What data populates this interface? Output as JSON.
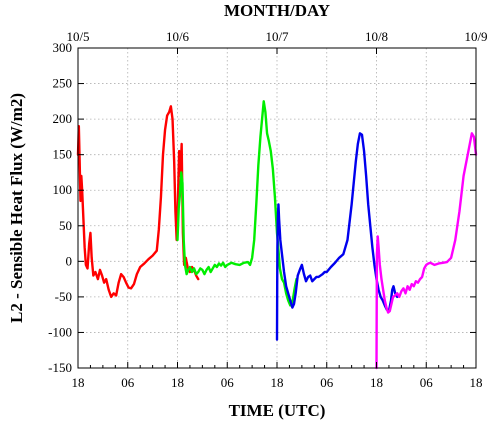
{
  "chart_data": {
    "type": "line",
    "title": "",
    "xlabel": "TIME (UTC)",
    "ylabel": "L2 - Sensible Heat Flux (W/m2)",
    "top_axis_label": "MONTH/DAY",
    "xlim": [
      0,
      96
    ],
    "ylim": [
      -150,
      300
    ],
    "grid": true,
    "legend": "none",
    "bottom_ticks": [
      {
        "x": 0,
        "label": "18"
      },
      {
        "x": 12,
        "label": "06"
      },
      {
        "x": 24,
        "label": "18"
      },
      {
        "x": 36,
        "label": "06"
      },
      {
        "x": 48,
        "label": "18"
      },
      {
        "x": 60,
        "label": "06"
      },
      {
        "x": 72,
        "label": "18"
      },
      {
        "x": 84,
        "label": "06"
      },
      {
        "x": 96,
        "label": "18"
      }
    ],
    "top_ticks": [
      {
        "x": 0,
        "label": "10/5"
      },
      {
        "x": 24,
        "label": "10/6"
      },
      {
        "x": 48,
        "label": "10/7"
      },
      {
        "x": 72,
        "label": "10/8"
      },
      {
        "x": 96,
        "label": "10/9"
      }
    ],
    "y_ticks": [
      -150,
      -100,
      -50,
      0,
      50,
      100,
      150,
      200,
      250,
      300
    ],
    "series": [
      {
        "color": "#ff0000",
        "points": [
          [
            0,
            150
          ],
          [
            0.2,
            190
          ],
          [
            0.4,
            140
          ],
          [
            0.6,
            85
          ],
          [
            0.8,
            120
          ],
          [
            1,
            100
          ],
          [
            1.3,
            60
          ],
          [
            1.6,
            20
          ],
          [
            1.9,
            -5
          ],
          [
            2.3,
            -10
          ],
          [
            2.7,
            25
          ],
          [
            3,
            40
          ],
          [
            3.3,
            5
          ],
          [
            3.7,
            -20
          ],
          [
            4.2,
            -15
          ],
          [
            4.8,
            -25
          ],
          [
            5.3,
            -12
          ],
          [
            5.8,
            -20
          ],
          [
            6.3,
            -30
          ],
          [
            6.8,
            -25
          ],
          [
            7.4,
            -40
          ],
          [
            8,
            -50
          ],
          [
            8.6,
            -45
          ],
          [
            9.2,
            -48
          ],
          [
            9.8,
            -30
          ],
          [
            10.4,
            -18
          ],
          [
            11,
            -22
          ],
          [
            11.6,
            -30
          ],
          [
            12.2,
            -37
          ],
          [
            12.8,
            -38
          ],
          [
            13.5,
            -32
          ],
          [
            14.2,
            -18
          ],
          [
            15,
            -8
          ],
          [
            16,
            -3
          ],
          [
            17,
            3
          ],
          [
            18,
            8
          ],
          [
            19,
            15
          ],
          [
            19.5,
            45
          ],
          [
            20,
            90
          ],
          [
            20.5,
            150
          ],
          [
            21,
            185
          ],
          [
            21.5,
            205
          ],
          [
            22,
            210
          ],
          [
            22.4,
            218
          ],
          [
            22.8,
            200
          ],
          [
            23.2,
            140
          ],
          [
            23.5,
            70
          ],
          [
            23.8,
            30
          ],
          [
            24.1,
            85
          ],
          [
            24.4,
            155
          ],
          [
            24.7,
            120
          ],
          [
            25,
            165
          ],
          [
            25.3,
            40
          ],
          [
            25.6,
            -5
          ],
          [
            26,
            5
          ],
          [
            26.5,
            -10
          ],
          [
            27,
            -15
          ],
          [
            27.5,
            -8
          ],
          [
            28,
            -12
          ],
          [
            28.5,
            -20
          ],
          [
            29,
            -25
          ]
        ]
      },
      {
        "color": "#00ee00",
        "points": [
          [
            24,
            30
          ],
          [
            24.3,
            75
          ],
          [
            24.6,
            95
          ],
          [
            24.9,
            125
          ],
          [
            25.2,
            110
          ],
          [
            25.5,
            30
          ],
          [
            25.8,
            -5
          ],
          [
            26.2,
            -18
          ],
          [
            26.6,
            -12
          ],
          [
            27,
            -8
          ],
          [
            27.5,
            -15
          ],
          [
            28,
            -10
          ],
          [
            28.5,
            -18
          ],
          [
            29,
            -15
          ],
          [
            29.5,
            -10
          ],
          [
            30,
            -12
          ],
          [
            30.5,
            -18
          ],
          [
            31,
            -12
          ],
          [
            31.5,
            -8
          ],
          [
            32,
            -15
          ],
          [
            32.5,
            -10
          ],
          [
            33,
            -5
          ],
          [
            33.5,
            -8
          ],
          [
            34,
            -3
          ],
          [
            34.5,
            -6
          ],
          [
            35,
            -2
          ],
          [
            35.5,
            -8
          ],
          [
            36,
            -5
          ],
          [
            37,
            -2
          ],
          [
            38,
            -4
          ],
          [
            39,
            -5
          ],
          [
            40,
            -2
          ],
          [
            41,
            -1
          ],
          [
            41.5,
            -5
          ],
          [
            42,
            5
          ],
          [
            42.5,
            30
          ],
          [
            43,
            80
          ],
          [
            43.5,
            135
          ],
          [
            44,
            175
          ],
          [
            44.4,
            200
          ],
          [
            44.8,
            225
          ],
          [
            45.2,
            210
          ],
          [
            45.6,
            180
          ],
          [
            46,
            170
          ],
          [
            46.5,
            155
          ],
          [
            47,
            130
          ],
          [
            47.5,
            90
          ],
          [
            48,
            40
          ],
          [
            48.3,
            20
          ],
          [
            48.7,
            -10
          ],
          [
            49.2,
            -25
          ],
          [
            49.7,
            -30
          ],
          [
            50.2,
            -45
          ],
          [
            50.7,
            -55
          ],
          [
            51.2,
            -62
          ],
          [
            51.7,
            -58
          ],
          [
            52.2,
            -40
          ],
          [
            52.7,
            -25
          ]
        ]
      },
      {
        "color": "#0000ee",
        "points": [
          [
            48,
            -110
          ],
          [
            48.05,
            -30
          ],
          [
            48.1,
            20
          ],
          [
            48.2,
            60
          ],
          [
            48.35,
            80
          ],
          [
            48.5,
            60
          ],
          [
            48.8,
            30
          ],
          [
            49.2,
            10
          ],
          [
            49.7,
            -15
          ],
          [
            50.2,
            -35
          ],
          [
            50.7,
            -45
          ],
          [
            51.2,
            -55
          ],
          [
            51.7,
            -65
          ],
          [
            52.1,
            -60
          ],
          [
            52.5,
            -45
          ],
          [
            53,
            -20
          ],
          [
            53.5,
            -12
          ],
          [
            54,
            -5
          ],
          [
            54.5,
            -18
          ],
          [
            55,
            -28
          ],
          [
            55.5,
            -22
          ],
          [
            56,
            -20
          ],
          [
            56.5,
            -28
          ],
          [
            57,
            -25
          ],
          [
            57.5,
            -22
          ],
          [
            58,
            -22
          ],
          [
            58.5,
            -20
          ],
          [
            59,
            -18
          ],
          [
            59.5,
            -15
          ],
          [
            60,
            -15
          ],
          [
            61,
            -8
          ],
          [
            62,
            -2
          ],
          [
            63,
            5
          ],
          [
            64,
            10
          ],
          [
            65,
            30
          ],
          [
            66,
            80
          ],
          [
            67,
            140
          ],
          [
            67.5,
            165
          ],
          [
            68,
            180
          ],
          [
            68.5,
            178
          ],
          [
            69,
            155
          ],
          [
            69.5,
            120
          ],
          [
            70,
            80
          ],
          [
            70.5,
            50
          ],
          [
            71,
            20
          ],
          [
            71.5,
            -5
          ],
          [
            72,
            -25
          ],
          [
            72.5,
            -40
          ],
          [
            73,
            -50
          ],
          [
            73.5,
            -55
          ],
          [
            74,
            -62
          ],
          [
            74.5,
            -68
          ],
          [
            75,
            -70
          ],
          [
            75.5,
            -55
          ],
          [
            75.8,
            -40
          ],
          [
            76.1,
            -35
          ],
          [
            76.5,
            -45
          ],
          [
            77,
            -50
          ]
        ]
      },
      {
        "color": "#ff00ff",
        "points": [
          [
            72,
            -150
          ],
          [
            72.05,
            -60
          ],
          [
            72.1,
            10
          ],
          [
            72.3,
            35
          ],
          [
            72.5,
            20
          ],
          [
            72.8,
            -5
          ],
          [
            73.2,
            -25
          ],
          [
            73.6,
            -40
          ],
          [
            74,
            -55
          ],
          [
            74.4,
            -65
          ],
          [
            74.8,
            -72
          ],
          [
            75.2,
            -70
          ],
          [
            75.6,
            -60
          ],
          [
            76,
            -50
          ],
          [
            76.5,
            -48
          ],
          [
            77,
            -45
          ],
          [
            77.5,
            -50
          ],
          [
            78,
            -42
          ],
          [
            78.5,
            -38
          ],
          [
            79,
            -45
          ],
          [
            79.5,
            -35
          ],
          [
            80,
            -40
          ],
          [
            80.5,
            -32
          ],
          [
            81,
            -35
          ],
          [
            81.5,
            -28
          ],
          [
            82,
            -30
          ],
          [
            82.5,
            -25
          ],
          [
            83,
            -22
          ],
          [
            83.5,
            -10
          ],
          [
            84,
            -5
          ],
          [
            84.5,
            -3
          ],
          [
            85,
            -2
          ],
          [
            86,
            -5
          ],
          [
            87,
            -3
          ],
          [
            88,
            -2
          ],
          [
            89,
            -1
          ],
          [
            90,
            5
          ],
          [
            91,
            30
          ],
          [
            92,
            70
          ],
          [
            93,
            120
          ],
          [
            94,
            150
          ],
          [
            95,
            180
          ],
          [
            95.5,
            175
          ],
          [
            96,
            150
          ]
        ]
      }
    ]
  }
}
